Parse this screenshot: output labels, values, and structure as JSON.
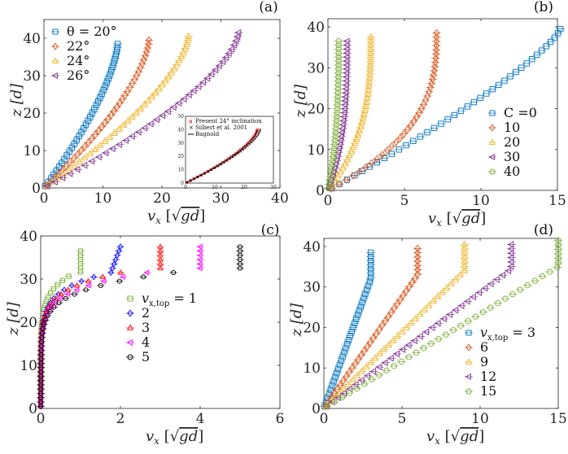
{
  "chart_data": [
    {
      "id": "a",
      "type": "scatter",
      "panel_label": "(a)",
      "xlabel": "v_x [√(gd)]",
      "ylabel": "z [d]",
      "xlim": [
        0,
        40
      ],
      "ylim": [
        0,
        45
      ],
      "xticks": [
        0,
        10,
        20,
        30,
        40
      ],
      "yticks": [
        0,
        10,
        20,
        30,
        40
      ],
      "legend_position": "top-left",
      "series": [
        {
          "name": "θ = 20°",
          "legend": "θ = 20°",
          "marker": "square",
          "color": "#0072BD",
          "z_max": 38.5,
          "v_top": 12.5,
          "shape": 1.45
        },
        {
          "name": "22°",
          "legend": "22°",
          "marker": "diamond",
          "color": "#D95319",
          "z_max": 39.5,
          "v_top": 17.8,
          "shape": 1.5
        },
        {
          "name": "24°",
          "legend": "24°",
          "marker": "triangle-up",
          "color": "#EDB120",
          "z_max": 40.5,
          "v_top": 24.5,
          "shape": 1.5
        },
        {
          "name": "26°",
          "legend": "26°",
          "marker": "triangle-left",
          "color": "#7E2F8E",
          "z_max": 41.5,
          "v_top": 33.0,
          "shape": 1.5
        }
      ],
      "inset": {
        "xlim": [
          0,
          30
        ],
        "ylim": [
          0,
          50
        ],
        "xticks": [
          0,
          10,
          20,
          30
        ],
        "yticks": [
          0,
          10,
          20,
          30,
          40,
          50
        ],
        "legend": [
          "Present 24° inclination",
          "Silbert et al. 2001",
          "Bagnold"
        ],
        "series": [
          {
            "name": "Present 24° inclination",
            "marker": "square",
            "color": "#FF0000",
            "z_max": 40,
            "v_top": 24.5
          },
          {
            "name": "Silbert et al. 2001",
            "marker": "x",
            "color": "#000000",
            "z_max": 40,
            "v_top": 25.5
          },
          {
            "name": "Bagnold",
            "marker": "line",
            "color": "#000000",
            "z_max": 40,
            "v_top": 24.5
          }
        ]
      }
    },
    {
      "id": "b",
      "type": "scatter",
      "panel_label": "(b)",
      "xlabel": "v_x [√(gd)]",
      "ylabel": "z [d]",
      "xlim": [
        0,
        15
      ],
      "ylim": [
        0,
        42
      ],
      "xticks": [
        0,
        5,
        10,
        15
      ],
      "yticks": [
        0,
        10,
        20,
        30,
        40
      ],
      "legend_position": "bottom-right",
      "legend_title_prefix": "C =",
      "series": [
        {
          "name": "C = 0",
          "legend": "C =0",
          "marker": "square",
          "color": "#0072BD",
          "z_max": 39.5,
          "v_top": 15.2
        },
        {
          "name": "10",
          "legend": "10",
          "marker": "diamond",
          "color": "#D95319",
          "z_max": 38.5,
          "v_top": 7.1
        },
        {
          "name": "20",
          "legend": "20",
          "marker": "triangle-up",
          "color": "#EDB120",
          "z_max": 37.5,
          "v_top": 2.8
        },
        {
          "name": "30",
          "legend": "30",
          "marker": "triangle-left",
          "color": "#7E2F8E",
          "z_max": 36.5,
          "v_top": 1.25
        },
        {
          "name": "40",
          "legend": "40",
          "marker": "circle",
          "color": "#77AC30",
          "z_max": 36.5,
          "v_top": 0.7
        }
      ]
    },
    {
      "id": "c",
      "type": "scatter",
      "panel_label": "(c)",
      "xlabel": "v_x [√(gd)]",
      "ylabel": "z [d]",
      "xlim": [
        0,
        6
      ],
      "ylim": [
        0,
        40
      ],
      "xticks": [
        0,
        2,
        4,
        6
      ],
      "yticks": [
        0,
        10,
        20,
        30,
        40
      ],
      "legend_position": "center",
      "series": [
        {
          "name": "v_x,top = 1",
          "legend": "= 1",
          "marker": "square",
          "color": "#77AC30",
          "z_max": 36.5,
          "v_top": 1,
          "plateau_from": 31.5
        },
        {
          "name": "2",
          "legend": "2",
          "marker": "diamond",
          "color": "#0000FF",
          "z_max": 37.5,
          "v_top": 2,
          "plateau_from": 31.5
        },
        {
          "name": "3",
          "legend": "3",
          "marker": "triangle-up",
          "color": "#FF0000",
          "z_max": 37.5,
          "v_top": 3,
          "plateau_from": 32.5
        },
        {
          "name": "4",
          "legend": "4",
          "marker": "triangle-left",
          "color": "#FF00FF",
          "z_max": 37.5,
          "v_top": 4,
          "plateau_from": 32.5
        },
        {
          "name": "5",
          "legend": "5",
          "marker": "circle",
          "color": "#000000",
          "z_max": 37.5,
          "v_top": 5,
          "plateau_from": 32.5
        }
      ]
    },
    {
      "id": "d",
      "type": "scatter",
      "panel_label": "(d)",
      "xlabel": "v_x [√(gd)]",
      "ylabel": "z [d]",
      "xlim": [
        0,
        15
      ],
      "ylim": [
        0,
        42
      ],
      "xticks": [
        0,
        5,
        10,
        15
      ],
      "yticks": [
        0,
        10,
        20,
        30,
        40
      ],
      "legend_position": "bottom-right",
      "series": [
        {
          "name": "v_x,top = 3",
          "legend": "= 3",
          "marker": "square",
          "color": "#0072BD",
          "z_max": 38.5,
          "v_top": 3,
          "plateau_from": 32
        },
        {
          "name": "6",
          "legend": "6",
          "marker": "diamond",
          "color": "#D95319",
          "z_max": 39.5,
          "v_top": 6,
          "plateau_from": 33
        },
        {
          "name": "9",
          "legend": "9",
          "marker": "triangle-up",
          "color": "#EDB120",
          "z_max": 40.5,
          "v_top": 9,
          "plateau_from": 34
        },
        {
          "name": "12",
          "legend": "12",
          "marker": "triangle-left",
          "color": "#7E2F8E",
          "z_max": 40.5,
          "v_top": 12,
          "plateau_from": 34.5
        },
        {
          "name": "15",
          "legend": "15",
          "marker": "circle",
          "color": "#77AC30",
          "z_max": 41.5,
          "v_top": 15,
          "plateau_from": 35
        }
      ]
    }
  ],
  "labels": {
    "a": "(a)",
    "b": "(b)",
    "c": "(c)",
    "d": "(d)",
    "ylabel": "z",
    "ylabel_unit": "[d]",
    "xlabel_v": "v",
    "xlabel_sub": "x",
    "xlabel_unit": "gd",
    "theta_prefix": "θ = ",
    "vtop_sub": "x,top"
  }
}
